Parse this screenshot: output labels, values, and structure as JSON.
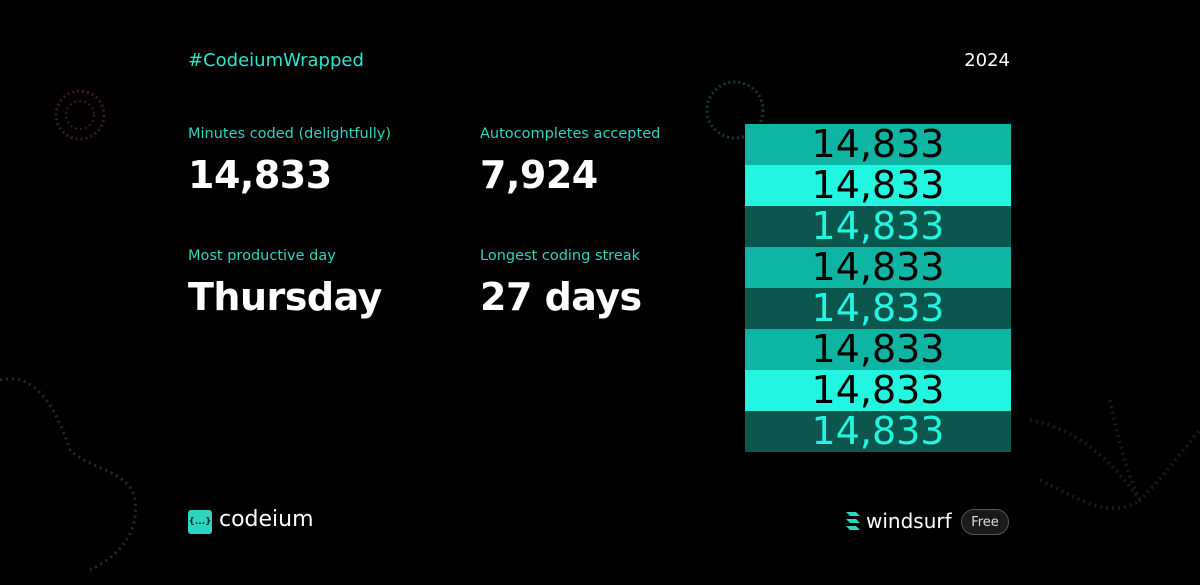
{
  "header": {
    "hashtag": "#CodeiumWrapped",
    "year": "2024"
  },
  "stats": [
    {
      "label": "Minutes coded (delightfully)",
      "value": "14,833"
    },
    {
      "label": "Autocompletes accepted",
      "value": "7,924"
    },
    {
      "label": "Most productive day",
      "value": "Thursday"
    },
    {
      "label": "Longest coding streak",
      "value": "27 days"
    }
  ],
  "stack": {
    "rows": [
      "14,833",
      "14,833",
      "14,833",
      "14,833",
      "14,833",
      "14,833",
      "14,833",
      "14,833"
    ]
  },
  "footer": {
    "logo_icon": "{...}",
    "brand": "codeium",
    "partner": "windsurf",
    "badge": "Free"
  }
}
